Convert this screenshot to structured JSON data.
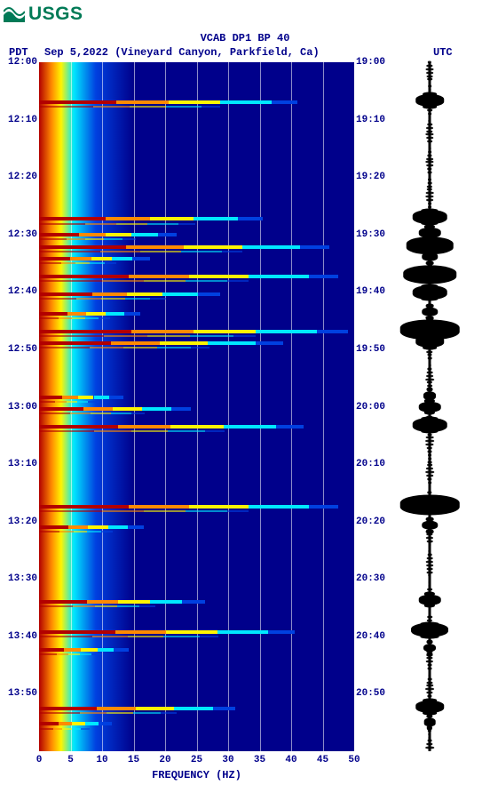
{
  "logo_text": "USGS",
  "title": "VCAB DP1 BP 40",
  "subtitle_pdt": "PDT",
  "subtitle_loc": "Sep 5,2022 (Vineyard Canyon, Parkfield, Ca)",
  "subtitle_utc": "UTC",
  "colors": {
    "deep": "#00008b",
    "blue": "#0040e0",
    "cyan": "#00e8ff",
    "yellow": "#fff400",
    "orange": "#ff8a00",
    "red": "#b20000",
    "usgs_green": "#007a56"
  },
  "y_left": [
    "12:00",
    "12:10",
    "12:20",
    "12:30",
    "12:40",
    "12:50",
    "13:00",
    "13:10",
    "13:20",
    "13:30",
    "13:40",
    "13:50"
  ],
  "y_right": [
    "19:00",
    "19:10",
    "19:20",
    "19:30",
    "19:40",
    "19:50",
    "20:00",
    "20:10",
    "20:20",
    "20:30",
    "20:40",
    "20:50"
  ],
  "y_positions_pct": [
    0,
    8.33,
    16.67,
    25,
    33.33,
    41.67,
    50,
    58.33,
    66.67,
    75,
    83.33,
    91.67
  ],
  "x_ticks": [
    "0",
    "5",
    "10",
    "15",
    "20",
    "25",
    "30",
    "35",
    "40",
    "45",
    "50"
  ],
  "x_label": "FREQUENCY (HZ)",
  "x_grid_pct": [
    0,
    10,
    20,
    30,
    40,
    50,
    60,
    70,
    80,
    90,
    100
  ],
  "lowfreq_gradient_stops": [
    {
      "c": "#b20000",
      "p": 0
    },
    {
      "c": "#ff8a00",
      "p": 4
    },
    {
      "c": "#fff400",
      "p": 7
    },
    {
      "c": "#00e8ff",
      "p": 11
    },
    {
      "c": "#0040e0",
      "p": 18
    },
    {
      "c": "#00008b",
      "p": 30
    }
  ],
  "events": [
    {
      "t": 5.5,
      "intensity": 1.0,
      "reach": 82,
      "wf": 0.45
    },
    {
      "t": 22.5,
      "intensity": 0.9,
      "reach": 78,
      "wf": 0.55
    },
    {
      "t": 24.8,
      "intensity": 0.7,
      "reach": 60,
      "wf": 0.35
    },
    {
      "t": 26.6,
      "intensity": 1.0,
      "reach": 92,
      "wf": 0.75
    },
    {
      "t": 28.2,
      "intensity": 0.6,
      "reach": 55,
      "wf": 0.25
    },
    {
      "t": 30.8,
      "intensity": 1.0,
      "reach": 95,
      "wf": 0.85
    },
    {
      "t": 33.4,
      "intensity": 0.8,
      "reach": 70,
      "wf": 0.55
    },
    {
      "t": 36.2,
      "intensity": 0.6,
      "reach": 50,
      "wf": 0.25
    },
    {
      "t": 38.8,
      "intensity": 1.0,
      "reach": 98,
      "wf": 0.95
    },
    {
      "t": 40.5,
      "intensity": 0.9,
      "reach": 85,
      "wf": 0.45
    },
    {
      "t": 48.4,
      "intensity": 0.55,
      "reach": 45,
      "wf": 0.2
    },
    {
      "t": 50.0,
      "intensity": 0.75,
      "reach": 62,
      "wf": 0.35
    },
    {
      "t": 52.6,
      "intensity": 0.95,
      "reach": 88,
      "wf": 0.55
    },
    {
      "t": 64.2,
      "intensity": 1.0,
      "reach": 95,
      "wf": 0.95
    },
    {
      "t": 67.2,
      "intensity": 0.6,
      "reach": 52,
      "wf": 0.25
    },
    {
      "t": 78.0,
      "intensity": 0.7,
      "reach": 72,
      "wf": 0.35
    },
    {
      "t": 82.4,
      "intensity": 0.95,
      "reach": 85,
      "wf": 0.6
    },
    {
      "t": 85.0,
      "intensity": 0.55,
      "reach": 48,
      "wf": 0.2
    },
    {
      "t": 93.5,
      "intensity": 0.85,
      "reach": 72,
      "wf": 0.45
    },
    {
      "t": 95.8,
      "intensity": 0.5,
      "reach": 42,
      "wf": 0.18
    }
  ]
}
